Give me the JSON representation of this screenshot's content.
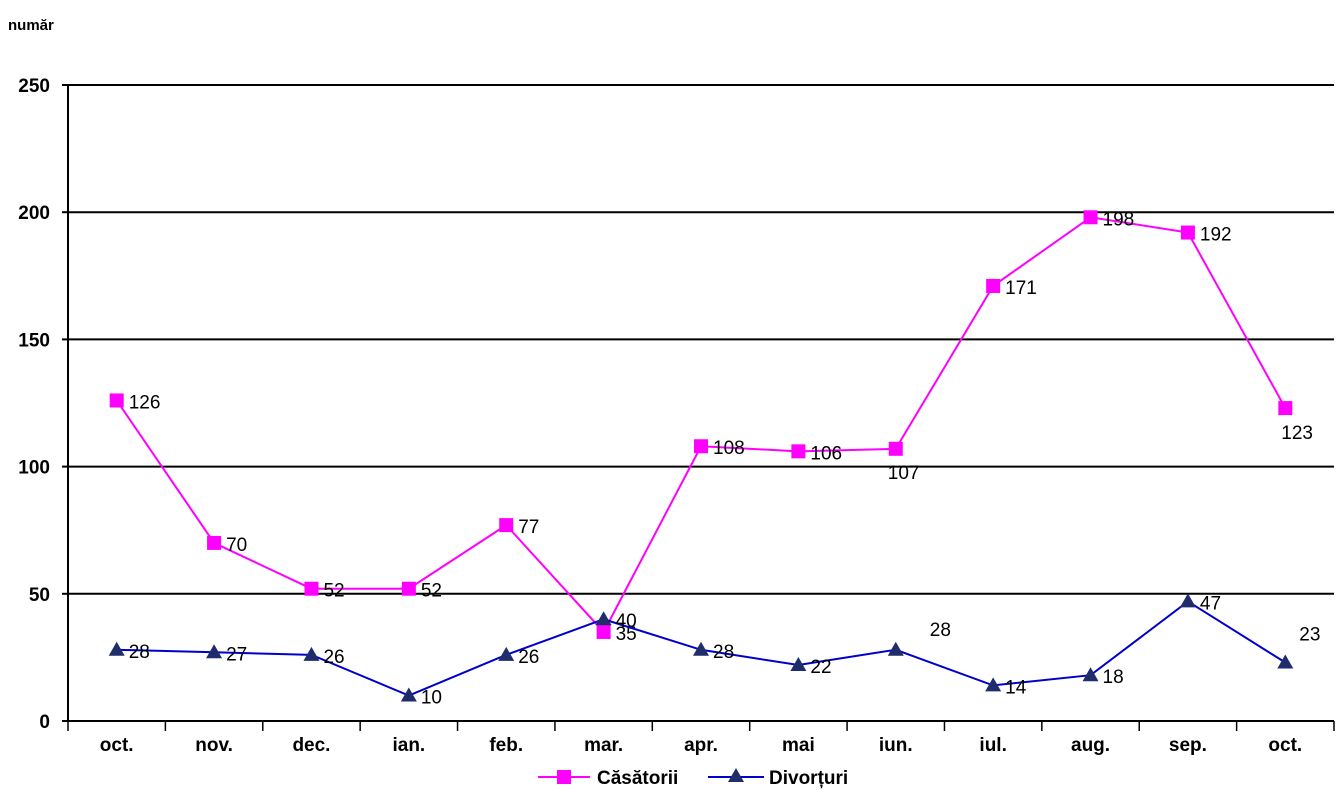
{
  "chart_data": {
    "type": "line",
    "ylabel": "număr",
    "ylim": [
      0,
      250
    ],
    "yticks": [
      0,
      50,
      100,
      150,
      200,
      250
    ],
    "grid": true,
    "legend_position": "bottom",
    "categories": [
      "oct.",
      "nov.",
      "dec.",
      "ian.",
      "feb.",
      "mar.",
      "apr.",
      "mai",
      "iun.",
      "iul.",
      "aug.",
      "sep.",
      "oct."
    ],
    "series": [
      {
        "name": "Căsătorii",
        "color": "#FF00FF",
        "marker": "square",
        "values": [
          126,
          70,
          52,
          52,
          77,
          35,
          108,
          106,
          107,
          171,
          198,
          192,
          123
        ]
      },
      {
        "name": "Divorțuri",
        "color": "#0000CC",
        "marker_color": "#1F2D6B",
        "marker": "triangle",
        "values": [
          28,
          27,
          26,
          10,
          26,
          40,
          28,
          22,
          28,
          14,
          18,
          47,
          23
        ]
      }
    ]
  }
}
